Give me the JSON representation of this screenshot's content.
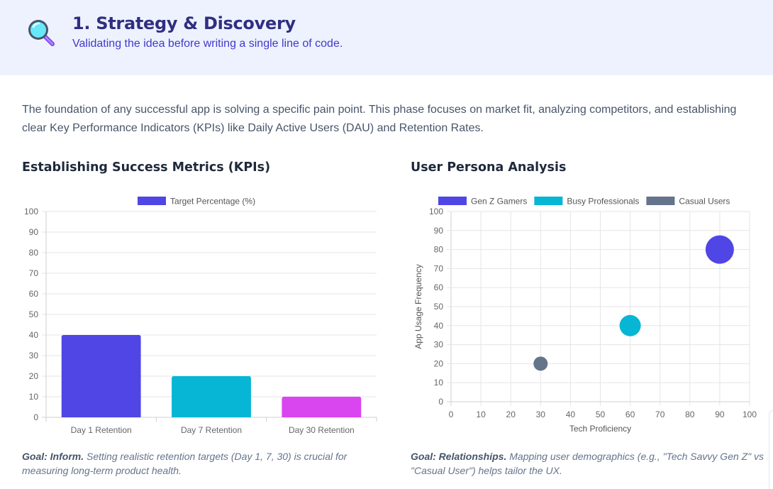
{
  "header": {
    "icon": "magnifier-icon",
    "title": "1. Strategy & Discovery",
    "subtitle": "Validating the idea before writing a single line of code."
  },
  "intro": "The foundation of any successful app is solving a specific pain point. This phase focuses on market fit, analyzing competitors, and establishing clear Key Performance Indicators (KPIs) like Daily Active Users (DAU) and Retention Rates.",
  "kpi": {
    "title": "Establishing Success Metrics (KPIs)",
    "caption_goal": "Goal: Inform.",
    "caption_text": " Setting realistic retention targets (Day 1, 7, 30) is crucial for measuring long-term product health."
  },
  "persona": {
    "title": "User Persona Analysis",
    "caption_goal": "Goal: Relationships.",
    "caption_text": " Mapping user demographics (e.g., \"Tech Savvy Gen Z\" vs \"Casual User\") helps tailor the UX."
  },
  "chart_data": [
    {
      "type": "bar",
      "categories": [
        "Day 1 Retention",
        "Day 7 Retention",
        "Day 30 Retention"
      ],
      "series": [
        {
          "name": "Target Percentage (%)",
          "values": [
            40,
            20,
            10
          ],
          "colors": [
            "#4f46e5",
            "#06b6d4",
            "#d946ef"
          ]
        }
      ],
      "ylim": [
        0,
        100
      ],
      "yticks": [
        0,
        10,
        20,
        30,
        40,
        50,
        60,
        70,
        80,
        90,
        100
      ],
      "legend": "top",
      "grid": true
    },
    {
      "type": "scatter",
      "series": [
        {
          "name": "Gen Z Gamers",
          "color": "#4f46e5",
          "points": [
            {
              "x": 90,
              "y": 80,
              "r": 20
            }
          ]
        },
        {
          "name": "Busy Professionals",
          "color": "#06b6d4",
          "points": [
            {
              "x": 60,
              "y": 40,
              "r": 15
            }
          ]
        },
        {
          "name": "Casual Users",
          "color": "#64748b",
          "points": [
            {
              "x": 30,
              "y": 20,
              "r": 10
            }
          ]
        }
      ],
      "xlabel": "Tech Proficiency",
      "ylabel": "App Usage Frequency",
      "xlim": [
        0,
        100
      ],
      "ylim": [
        0,
        100
      ],
      "xticks": [
        0,
        10,
        20,
        30,
        40,
        50,
        60,
        70,
        80,
        90,
        100
      ],
      "yticks": [
        0,
        10,
        20,
        30,
        40,
        50,
        60,
        70,
        80,
        90,
        100
      ],
      "legend": "top",
      "grid": true
    }
  ]
}
